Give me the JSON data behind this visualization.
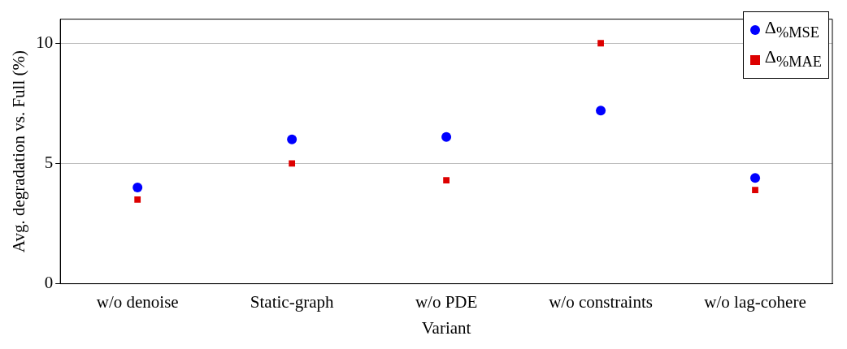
{
  "chart_data": {
    "type": "scatter",
    "xlabel": "Variant",
    "ylabel": "Avg. degradation vs. Full (%)",
    "categories": [
      "w/o denoise",
      "Static-graph",
      "w/o PDE",
      "w/o constraints",
      "w/o lag-cohere"
    ],
    "series": [
      {
        "name": "Δ$_{%MSE}$",
        "color": "#0000ff",
        "marker": "circle",
        "values": [
          4.0,
          6.0,
          6.1,
          7.2,
          4.4
        ]
      },
      {
        "name": "Δ$_{%MAE}$",
        "color": "#dd0000",
        "marker": "square",
        "values": [
          3.5,
          5.0,
          4.3,
          10.0,
          3.9
        ]
      }
    ],
    "ylim": [
      0,
      11
    ],
    "yticks": [
      0,
      5,
      10
    ],
    "grid": "y",
    "legend": "top right"
  }
}
